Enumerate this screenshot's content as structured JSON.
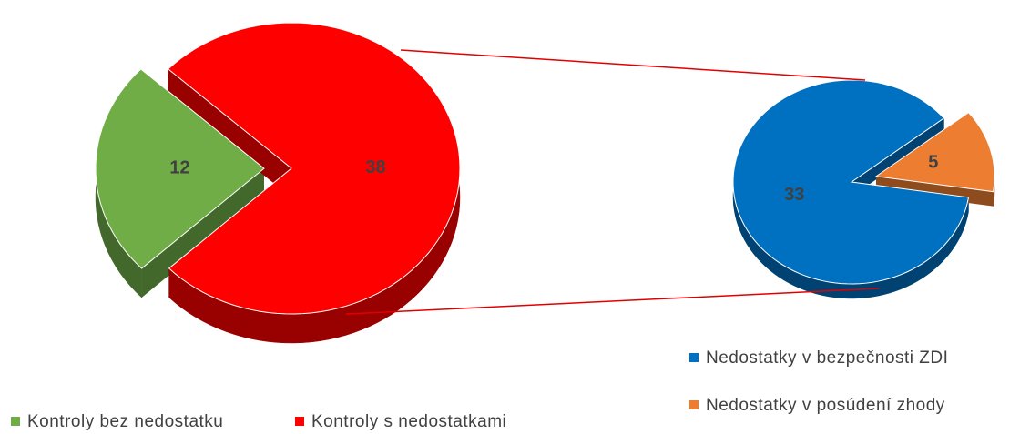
{
  "chart_data": [
    {
      "type": "pie",
      "categories": [
        "Kontroly bez nedostatku",
        "Kontroly s nedostatkami"
      ],
      "values": [
        12,
        38
      ],
      "colors": [
        "#70ad47",
        "#ff0000"
      ]
    },
    {
      "type": "pie",
      "categories": [
        "Nedostatky v bezpečnosti ZDI",
        "Nedostatky v posúdení zhody"
      ],
      "values": [
        33,
        5
      ],
      "colors": [
        "#0070c0",
        "#ed7d31"
      ]
    }
  ]
}
